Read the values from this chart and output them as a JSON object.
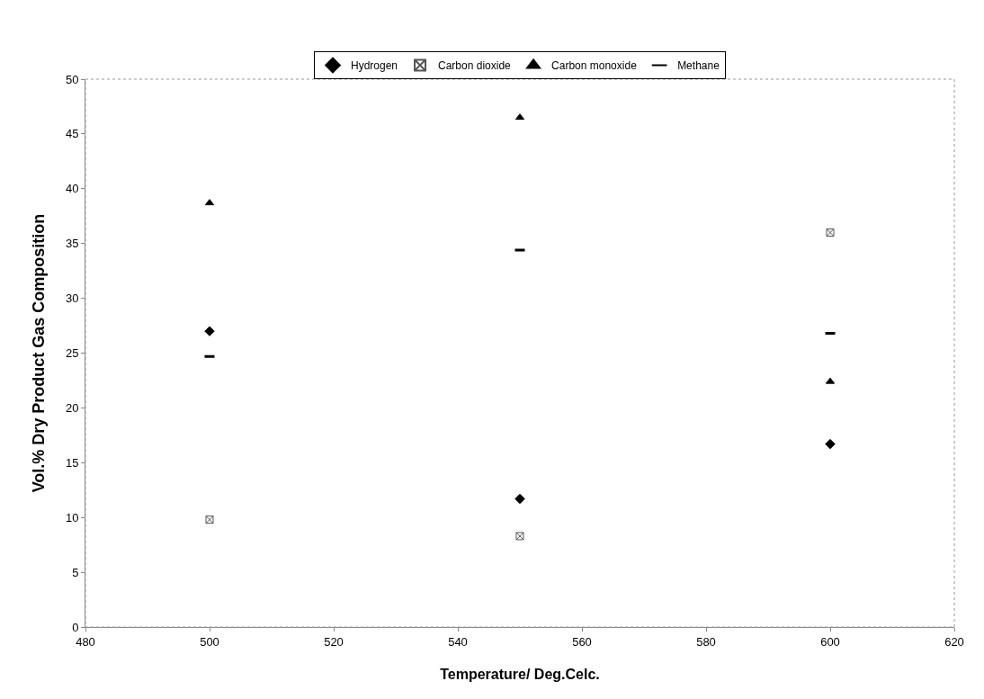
{
  "chart_data": {
    "type": "scatter",
    "xlabel": "Temperature/ Deg.Celc.",
    "ylabel": "Vol.% Dry Product Gas Composition",
    "x": [
      500,
      550,
      600
    ],
    "series": [
      {
        "name": "Hydrogen",
        "color": "#000000",
        "marker": "diamond",
        "values": [
          27.0,
          11.7,
          16.7
        ]
      },
      {
        "name": "Carbon dioxide",
        "color": "#555555",
        "marker": "cross",
        "values": [
          9.8,
          8.3,
          36.0
        ]
      },
      {
        "name": "Carbon monoxide",
        "color": "#000000",
        "marker": "triangle",
        "values": [
          38.7,
          46.5,
          22.4
        ]
      },
      {
        "name": "Methane",
        "color": "#000000",
        "values": [
          24.7,
          34.4,
          26.8
        ]
      }
    ],
    "xlim": [
      480,
      620
    ],
    "xticks": [
      480,
      500,
      520,
      540,
      560,
      580,
      600,
      620
    ],
    "ylim": [
      0,
      50
    ],
    "yticks": [
      0,
      5,
      10,
      15,
      20,
      25,
      30,
      35,
      40,
      45,
      50
    ],
    "legend": "top"
  }
}
